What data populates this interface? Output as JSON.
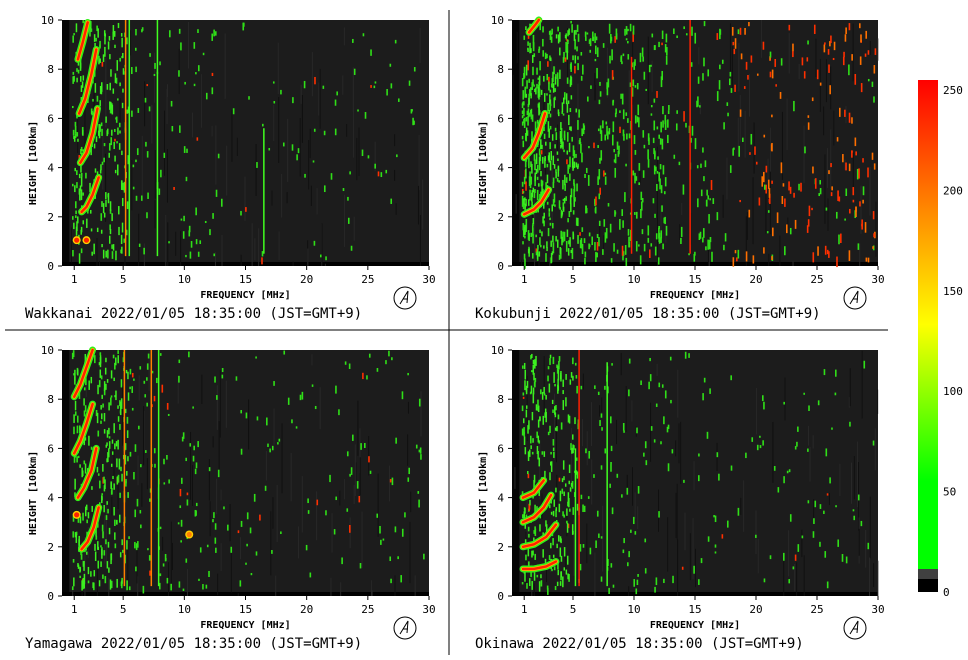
{
  "chart_data": [
    {
      "type": "heatmap",
      "station": "Wakkanai",
      "caption": "Wakkanai 2022/01/05 18:35:00 (JST=GMT+9)",
      "xlabel": "FREQUENCY [MHz]",
      "ylabel": "HEIGHT [100km]",
      "xlim": [
        0,
        30
      ],
      "ylim": [
        0,
        10
      ],
      "xticks": [
        "1",
        "5",
        "10",
        "15",
        "20",
        "25",
        "30"
      ],
      "yticks": [
        "0",
        "2",
        "4",
        "6",
        "8",
        "10"
      ],
      "traces": [
        {
          "f": [
            1.6,
            2.0,
            2.5,
            3.0
          ],
          "h": [
            2.2,
            2.4,
            2.9,
            3.6
          ],
          "level": 255
        },
        {
          "f": [
            1.5,
            2.0,
            2.5,
            2.9
          ],
          "h": [
            4.2,
            4.6,
            5.4,
            6.4
          ],
          "level": 255
        },
        {
          "f": [
            1.4,
            1.9,
            2.4,
            2.8
          ],
          "h": [
            6.2,
            6.8,
            7.8,
            8.8
          ],
          "level": 255
        },
        {
          "f": [
            1.3,
            1.7,
            2.1
          ],
          "h": [
            8.4,
            9.1,
            9.9
          ],
          "level": 255
        }
      ],
      "spots": [
        {
          "f": 1.2,
          "h": 1.05,
          "level": 255
        },
        {
          "f": 2.0,
          "h": 1.05,
          "level": 255
        }
      ],
      "lines": [
        {
          "f": 5.2,
          "h": [
            0.4,
            10
          ],
          "level": 235
        },
        {
          "f": 5.5,
          "h": [
            0.4,
            10
          ],
          "level": 90
        },
        {
          "f": 7.8,
          "h": [
            0.4,
            10
          ],
          "level": 80
        },
        {
          "f": 16.5,
          "h": [
            0.5,
            5.6
          ],
          "level": 80
        }
      ]
    },
    {
      "type": "heatmap",
      "station": "Kokubunji",
      "caption": "Kokubunji 2022/01/05 18:35:00 (JST=GMT+9)",
      "xlabel": "FREQUENCY [MHz]",
      "ylabel": "HEIGHT [100km]",
      "xlim": [
        0,
        30
      ],
      "ylim": [
        0,
        10
      ],
      "xticks": [
        "1",
        "5",
        "10",
        "15",
        "20",
        "25",
        "30"
      ],
      "yticks": [
        "0",
        "2",
        "4",
        "6",
        "8",
        "10"
      ],
      "traces": [
        {
          "f": [
            1.0,
            1.8,
            2.4,
            3.0
          ],
          "h": [
            2.1,
            2.3,
            2.6,
            3.1
          ],
          "level": 255
        },
        {
          "f": [
            1.0,
            1.7,
            2.2,
            2.7
          ],
          "h": [
            4.4,
            4.8,
            5.4,
            6.2
          ],
          "level": 255
        },
        {
          "f": [
            1.4,
            1.9,
            2.2
          ],
          "h": [
            9.5,
            9.8,
            10.0
          ],
          "level": 255
        }
      ],
      "spots": [],
      "lines": [
        {
          "f": 9.8,
          "h": [
            0.5,
            8.5
          ],
          "level": 240
        },
        {
          "f": 14.6,
          "h": [
            0.5,
            10
          ],
          "level": 240
        }
      ]
    },
    {
      "type": "heatmap",
      "station": "Yamagawa",
      "caption": "Yamagawa 2022/01/05 18:35:00 (JST=GMT+9)",
      "xlabel": "FREQUENCY [MHz]",
      "ylabel": "HEIGHT [100km]",
      "xlim": [
        0,
        30
      ],
      "ylim": [
        0,
        10
      ],
      "xticks": [
        "1",
        "5",
        "10",
        "15",
        "20",
        "25",
        "30"
      ],
      "yticks": [
        "0",
        "2",
        "4",
        "6",
        "8",
        "10"
      ],
      "traces": [
        {
          "f": [
            1.6,
            2.1,
            2.6,
            3.0
          ],
          "h": [
            1.9,
            2.2,
            2.8,
            3.6
          ],
          "level": 255
        },
        {
          "f": [
            1.3,
            1.8,
            2.4,
            2.8
          ],
          "h": [
            4.0,
            4.4,
            5.1,
            6.0
          ],
          "level": 255
        },
        {
          "f": [
            1.0,
            1.5,
            2.0,
            2.5
          ],
          "h": [
            5.8,
            6.3,
            7.0,
            7.8
          ],
          "level": 255
        },
        {
          "f": [
            1.0,
            1.5,
            2.0,
            2.5
          ],
          "h": [
            8.1,
            8.6,
            9.3,
            10.0
          ],
          "level": 255
        }
      ],
      "spots": [
        {
          "f": 1.2,
          "h": 3.3,
          "level": 255
        },
        {
          "f": 10.4,
          "h": 2.5,
          "level": 230
        }
      ],
      "lines": [
        {
          "f": 5.1,
          "h": [
            0.4,
            10
          ],
          "level": 235
        },
        {
          "f": 7.3,
          "h": [
            0.4,
            10
          ],
          "level": 225
        },
        {
          "f": 7.9,
          "h": [
            0.4,
            10
          ],
          "level": 80
        }
      ]
    },
    {
      "type": "heatmap",
      "station": "Okinawa",
      "caption": "Okinawa 2022/01/05 18:35:00 (JST=GMT+9)",
      "xlabel": "FREQUENCY [MHz]",
      "ylabel": "HEIGHT [100km]",
      "xlim": [
        0,
        30
      ],
      "ylim": [
        0,
        10
      ],
      "xticks": [
        "1",
        "5",
        "10",
        "15",
        "20",
        "25",
        "30"
      ],
      "yticks": [
        "0",
        "2",
        "4",
        "6",
        "8",
        "10"
      ],
      "traces": [
        {
          "f": [
            0.9,
            1.8,
            2.8,
            3.6
          ],
          "h": [
            1.1,
            1.1,
            1.2,
            1.4
          ],
          "level": 255
        },
        {
          "f": [
            0.9,
            1.8,
            2.8,
            3.6
          ],
          "h": [
            2.0,
            2.1,
            2.4,
            2.9
          ],
          "level": 255
        },
        {
          "f": [
            0.9,
            1.8,
            2.6,
            3.2
          ],
          "h": [
            3.0,
            3.2,
            3.6,
            4.1
          ],
          "level": 255
        },
        {
          "f": [
            0.9,
            1.8,
            2.6
          ],
          "h": [
            4.0,
            4.2,
            4.7
          ],
          "level": 240
        }
      ],
      "spots": [],
      "lines": [
        {
          "f": 5.5,
          "h": [
            0.4,
            10
          ],
          "level": 240
        },
        {
          "f": 5.2,
          "h": [
            0.4,
            6.0
          ],
          "level": 80
        },
        {
          "f": 7.8,
          "h": [
            0.4,
            9.5
          ],
          "level": 80
        }
      ]
    },
    {
      "type": "heatmap",
      "name": "colorbar",
      "range": [
        0,
        255
      ],
      "ticks": [
        "250",
        "200",
        "150",
        "100",
        "50",
        "0"
      ],
      "colors": [
        "#ff0000",
        "#ff8000",
        "#ffff00",
        "#00ff00",
        "#404040",
        "#000000"
      ]
    }
  ]
}
